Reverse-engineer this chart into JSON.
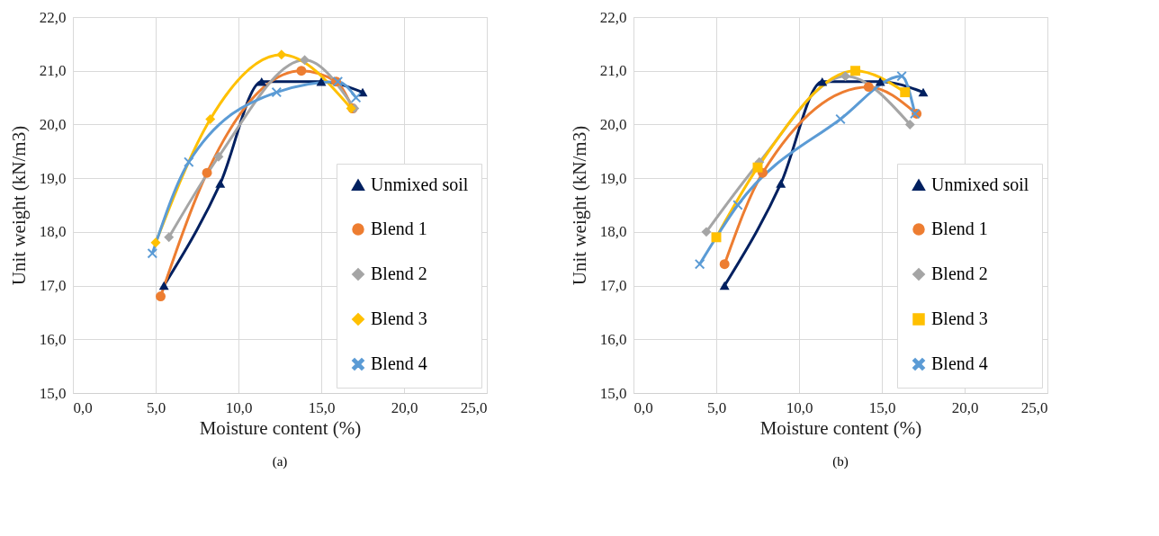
{
  "chart_data": [
    {
      "type": "line",
      "xlabel": "Moisture content (%)",
      "ylabel": "Unit weight (kN/m3)",
      "annotations": [
        "(a)"
      ],
      "xlim": [
        0,
        25
      ],
      "ylim": [
        15,
        22
      ],
      "xticks": [
        {
          "value": 0,
          "label": "0,0"
        },
        {
          "value": 5,
          "label": "5,0"
        },
        {
          "value": 10,
          "label": "10,0"
        },
        {
          "value": 15,
          "label": "15,0"
        },
        {
          "value": 20,
          "label": "20,0"
        },
        {
          "value": 25,
          "label": "25,0"
        }
      ],
      "yticks": [
        {
          "value": 15,
          "label": "15,0"
        },
        {
          "value": 16,
          "label": "16,0"
        },
        {
          "value": 17,
          "label": "17,0"
        },
        {
          "value": 18,
          "label": "18,0"
        },
        {
          "value": 19,
          "label": "19,0"
        },
        {
          "value": 20,
          "label": "20,0"
        },
        {
          "value": 21,
          "label": "21,0"
        },
        {
          "value": 22,
          "label": "22,0"
        }
      ],
      "grid": true,
      "legend": "bottom right",
      "series": [
        {
          "name": "Unmixed soil",
          "color": "#002060",
          "marker": "triangle",
          "x": [
            5.5,
            8.9,
            11.4,
            15.0,
            17.5
          ],
          "values": [
            17.0,
            18.9,
            20.8,
            20.8,
            20.6
          ]
        },
        {
          "name": "Blend 1",
          "color": "#ed7d31",
          "marker": "circle",
          "x": [
            5.3,
            8.1,
            13.8,
            15.9,
            16.9
          ],
          "values": [
            16.8,
            19.1,
            21.0,
            20.8,
            20.3
          ]
        },
        {
          "name": "Blend 2",
          "color": "#a5a5a5",
          "marker": "diamond",
          "x": [
            5.8,
            8.8,
            14.0,
            17.0
          ],
          "values": [
            17.9,
            19.4,
            21.2,
            20.3
          ]
        },
        {
          "name": "Blend 3",
          "color": "#ffc000",
          "marker": "diamond",
          "x": [
            5.0,
            8.3,
            12.6,
            16.8
          ],
          "values": [
            17.8,
            20.1,
            21.3,
            20.3
          ]
        },
        {
          "name": "Blend 4",
          "color": "#5b9bd5",
          "marker": "cross",
          "x": [
            4.8,
            7.0,
            12.3,
            16.0,
            17.1
          ],
          "values": [
            17.6,
            19.3,
            20.6,
            20.8,
            20.5
          ]
        }
      ]
    },
    {
      "type": "line",
      "xlabel": "Moisture content (%)",
      "ylabel": "Unit weight (kN/m3)",
      "annotations": [
        "(b)"
      ],
      "xlim": [
        0,
        25
      ],
      "ylim": [
        15,
        22
      ],
      "xticks": [
        {
          "value": 0,
          "label": "0,0"
        },
        {
          "value": 5,
          "label": "5,0"
        },
        {
          "value": 10,
          "label": "10,0"
        },
        {
          "value": 15,
          "label": "15,0"
        },
        {
          "value": 20,
          "label": "20,0"
        },
        {
          "value": 25,
          "label": "25,0"
        }
      ],
      "yticks": [
        {
          "value": 15,
          "label": "15,0"
        },
        {
          "value": 16,
          "label": "16,0"
        },
        {
          "value": 17,
          "label": "17,0"
        },
        {
          "value": 18,
          "label": "18,0"
        },
        {
          "value": 19,
          "label": "19,0"
        },
        {
          "value": 20,
          "label": "20,0"
        },
        {
          "value": 21,
          "label": "21,0"
        },
        {
          "value": 22,
          "label": "22,0"
        }
      ],
      "grid": true,
      "legend": "bottom right",
      "series": [
        {
          "name": "Unmixed soil",
          "color": "#002060",
          "marker": "triangle",
          "x": [
            5.5,
            8.9,
            11.4,
            14.9,
            17.5
          ],
          "values": [
            17.0,
            18.9,
            20.8,
            20.8,
            20.6
          ]
        },
        {
          "name": "Blend 1",
          "color": "#ed7d31",
          "marker": "circle",
          "x": [
            5.5,
            7.8,
            14.2,
            17.1
          ],
          "values": [
            17.4,
            19.1,
            20.7,
            20.2
          ]
        },
        {
          "name": "Blend 2",
          "color": "#a5a5a5",
          "marker": "diamond",
          "x": [
            4.4,
            7.6,
            12.8,
            16.7
          ],
          "values": [
            18.0,
            19.3,
            20.9,
            20.0
          ]
        },
        {
          "name": "Blend 3",
          "color": "#ffc000",
          "marker": "square",
          "x": [
            5.0,
            7.5,
            13.4,
            16.4
          ],
          "values": [
            17.9,
            19.2,
            21.0,
            20.6
          ]
        },
        {
          "name": "Blend 4",
          "color": "#5b9bd5",
          "marker": "cross",
          "x": [
            4.0,
            6.3,
            12.5,
            16.2,
            17.0
          ],
          "values": [
            17.4,
            18.5,
            20.1,
            20.9,
            20.2
          ]
        }
      ]
    }
  ]
}
